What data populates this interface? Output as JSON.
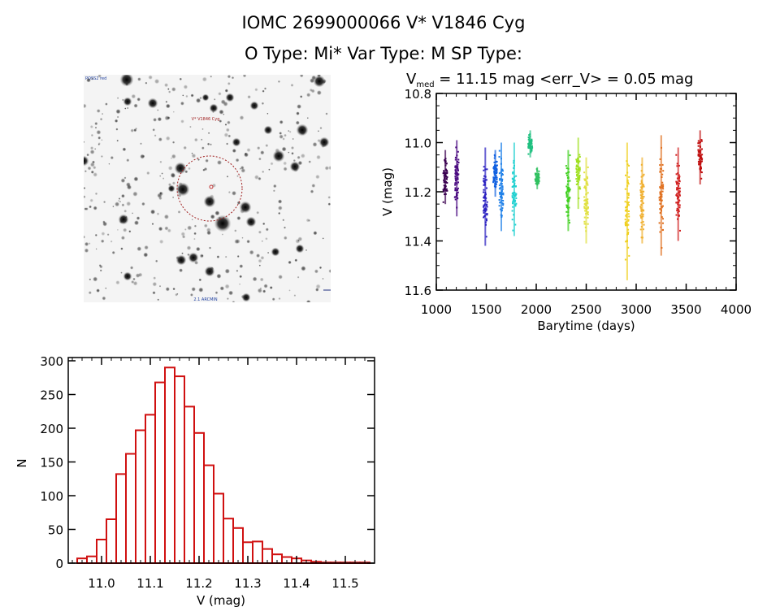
{
  "header": {
    "title": "IOMC 2699000066    V* V1846 Cyg",
    "subtitle": "O Type: Mi*   Var Type: M   SP Type:"
  },
  "starfield": {
    "label_top_left": "POSS2 red",
    "target_label": "V* V1846 Cyg",
    "label_bottom": "2.1 ARCMIN"
  },
  "chart_data": [
    {
      "type": "scatter",
      "title_main": "V",
      "title_sub": "med",
      "title_rest": " = 11.15 mag <err_V> = 0.05 mag",
      "xlabel": "Barytime (days)",
      "ylabel": "V (mag)",
      "xlim": [
        1000,
        4000
      ],
      "ylim": [
        11.6,
        10.8
      ],
      "y_inverted": true,
      "xticks": [
        1000,
        1500,
        2000,
        2500,
        3000,
        3500,
        4000
      ],
      "xtick_labels": [
        "1000",
        "1500",
        "2000",
        "2500",
        "3000",
        "3500",
        "4000"
      ],
      "yticks": [
        10.8,
        11.0,
        11.2,
        11.4,
        11.6
      ],
      "ytick_labels": [
        "10.8",
        "11.0",
        "11.2",
        "11.4",
        "11.6"
      ],
      "color_scale": "rainbow by time",
      "clusters": [
        {
          "x": 1090,
          "ymin": 11.03,
          "ymax": 11.25,
          "color": "#3a0050"
        },
        {
          "x": 1205,
          "ymin": 10.99,
          "ymax": 11.3,
          "color": "#4a0a80"
        },
        {
          "x": 1490,
          "ymin": 11.02,
          "ymax": 11.42,
          "color": "#2a20c0"
        },
        {
          "x": 1590,
          "ymin": 11.03,
          "ymax": 11.22,
          "color": "#1060e0"
        },
        {
          "x": 1650,
          "ymin": 11.0,
          "ymax": 11.36,
          "color": "#2080e8"
        },
        {
          "x": 1780,
          "ymin": 11.0,
          "ymax": 11.38,
          "color": "#20d0d0"
        },
        {
          "x": 1940,
          "ymin": 10.95,
          "ymax": 11.06,
          "color": "#20c080"
        },
        {
          "x": 2010,
          "ymin": 11.1,
          "ymax": 11.19,
          "color": "#30c060"
        },
        {
          "x": 2320,
          "ymin": 11.03,
          "ymax": 11.36,
          "color": "#40d020"
        },
        {
          "x": 2420,
          "ymin": 10.98,
          "ymax": 11.27,
          "color": "#a0e020"
        },
        {
          "x": 2500,
          "ymin": 11.06,
          "ymax": 11.41,
          "color": "#e0e040"
        },
        {
          "x": 2910,
          "ymin": 11.0,
          "ymax": 11.56,
          "color": "#f0d020"
        },
        {
          "x": 3060,
          "ymin": 11.06,
          "ymax": 11.41,
          "color": "#f0b030"
        },
        {
          "x": 3250,
          "ymin": 10.97,
          "ymax": 11.46,
          "color": "#e07020"
        },
        {
          "x": 3420,
          "ymin": 11.02,
          "ymax": 11.4,
          "color": "#d02020"
        },
        {
          "x": 3640,
          "ymin": 10.95,
          "ymax": 11.17,
          "color": "#c01010"
        }
      ]
    },
    {
      "type": "bar",
      "subtype": "histogram",
      "xlabel": "V (mag)",
      "ylabel": "N",
      "xlim": [
        10.93,
        11.6
      ],
      "ylim": [
        0,
        300
      ],
      "bin_width": 0.02,
      "bin_starts": [
        10.95,
        10.97,
        10.99,
        11.01,
        11.03,
        11.05,
        11.07,
        11.09,
        11.11,
        11.13,
        11.15,
        11.17,
        11.19,
        11.21,
        11.23,
        11.25,
        11.27,
        11.29,
        11.31,
        11.33,
        11.35,
        11.37,
        11.39,
        11.41,
        11.43,
        11.45,
        11.47,
        11.49,
        11.51,
        11.53
      ],
      "values": [
        7,
        10,
        35,
        65,
        132,
        162,
        197,
        220,
        268,
        290,
        277,
        232,
        193,
        145,
        103,
        66,
        52,
        31,
        32,
        21,
        13,
        9,
        7,
        4,
        2,
        1,
        1,
        1,
        1,
        1
      ],
      "xticks": [
        11.0,
        11.1,
        11.2,
        11.3,
        11.4,
        11.5
      ],
      "xtick_labels": [
        "11.0",
        "11.1",
        "11.2",
        "11.3",
        "11.4",
        "11.5"
      ],
      "yticks": [
        0,
        50,
        100,
        150,
        200,
        250,
        300
      ],
      "ytick_labels": [
        "0",
        "50",
        "100",
        "150",
        "200",
        "250",
        "300"
      ],
      "bar_color": "#d01010"
    }
  ]
}
